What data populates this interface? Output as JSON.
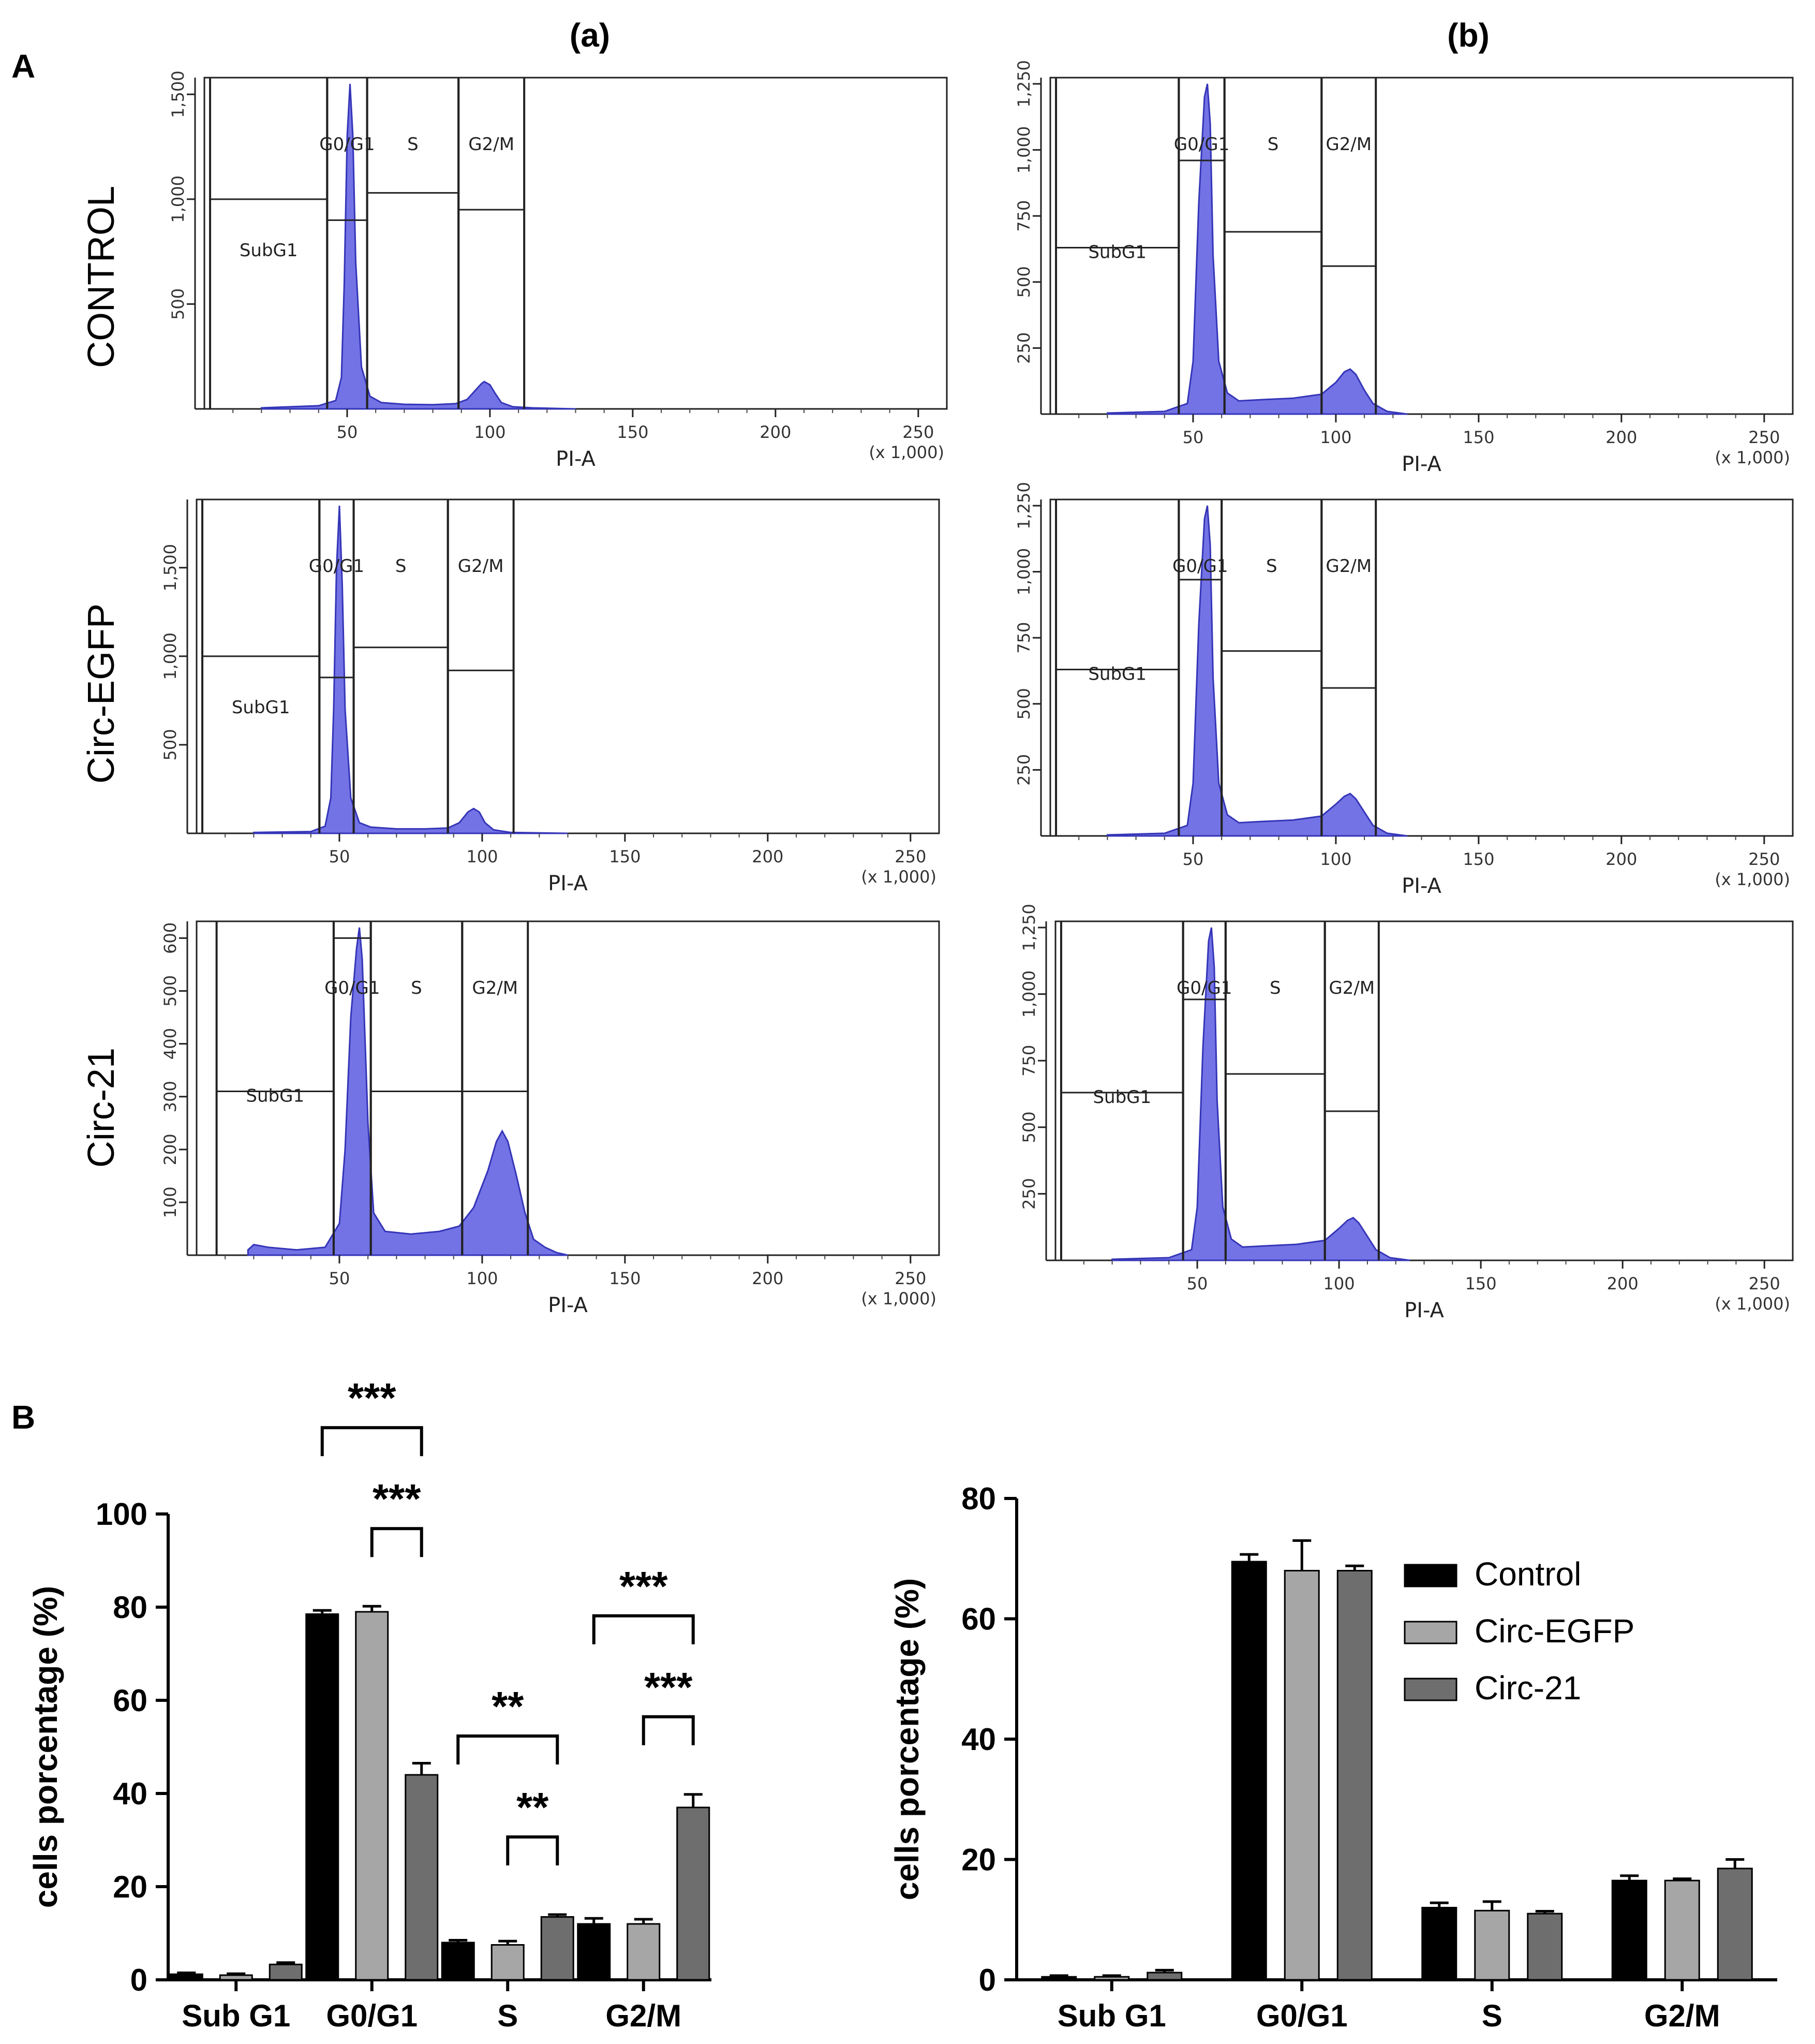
{
  "panel_labels": {
    "A": "A",
    "B": "B",
    "col_a": "(a)",
    "col_b": "(b)"
  },
  "row_labels": [
    "CONTROL",
    "Circ-EGFP",
    "Circ-21"
  ],
  "colors": {
    "histogram": "#5b5be0",
    "control": "#000000",
    "circ_egfp": "#a6a6a6",
    "circ_21": "#6e6e6e"
  },
  "chart_data": [
    {
      "id": "A-a-control",
      "type": "area",
      "column": "(a)",
      "row": "CONTROL",
      "xlabel": "PI-A",
      "x_multiplier": "(x 1,000)",
      "xticks": [
        "50",
        "100",
        "150",
        "200",
        "250"
      ],
      "xlim": [
        0,
        260
      ],
      "yticks": [
        "500",
        "1,000",
        "1,500"
      ],
      "ylim": [
        0,
        1550
      ],
      "gates": [
        {
          "name": "SubG1",
          "x0": 2,
          "x1": 43,
          "level": 1000
        },
        {
          "name": "G0/G1",
          "x0": 43,
          "x1": 57,
          "level": 900
        },
        {
          "name": "S",
          "x0": 57,
          "x1": 89,
          "level": 1030
        },
        {
          "name": "G2/M",
          "x0": 89,
          "x1": 112,
          "level": 950
        }
      ],
      "peaks": {
        "g1_x": 51,
        "g1_y": 1550,
        "g2_x": 98,
        "g2_y": 130,
        "s_level": 20
      },
      "histogram_x": [
        20,
        40,
        46,
        48,
        49,
        50,
        51,
        52,
        53,
        55,
        58,
        62,
        70,
        80,
        88,
        92,
        95,
        97,
        98,
        100,
        102,
        104,
        108,
        115,
        130
      ],
      "histogram_y": [
        5,
        15,
        40,
        150,
        600,
        1300,
        1550,
        1300,
        700,
        200,
        60,
        30,
        22,
        20,
        25,
        45,
        90,
        120,
        130,
        115,
        70,
        30,
        10,
        5,
        0
      ]
    },
    {
      "id": "A-b-control",
      "type": "area",
      "column": "(b)",
      "row": "CONTROL",
      "xlabel": "PI-A",
      "x_multiplier": "(x 1,000)",
      "xticks": [
        "50",
        "100",
        "150",
        "200",
        "250"
      ],
      "xlim": [
        0,
        260
      ],
      "yticks": [
        "250",
        "500",
        "750",
        "1,000",
        "1,250"
      ],
      "ylim": [
        0,
        1250
      ],
      "gates": [
        {
          "name": "SubG1",
          "x0": 2,
          "x1": 45,
          "level": 630
        },
        {
          "name": "G0/G1",
          "x0": 45,
          "x1": 61,
          "level": 960
        },
        {
          "name": "S",
          "x0": 61,
          "x1": 95,
          "level": 690
        },
        {
          "name": "G2/M",
          "x0": 95,
          "x1": 114,
          "level": 560
        }
      ],
      "peaks": {
        "g1_x": 55,
        "g1_y": 1250,
        "g2_x": 105,
        "g2_y": 170,
        "s_level": 50
      },
      "histogram_x": [
        20,
        40,
        48,
        50,
        52,
        54,
        55,
        56,
        57,
        59,
        62,
        66,
        75,
        85,
        95,
        100,
        103,
        105,
        107,
        110,
        113,
        118,
        125
      ],
      "histogram_y": [
        4,
        10,
        40,
        200,
        800,
        1200,
        1250,
        1100,
        600,
        200,
        80,
        50,
        55,
        60,
        75,
        120,
        160,
        170,
        150,
        90,
        40,
        10,
        0
      ]
    },
    {
      "id": "A-a-circ-egfp",
      "type": "area",
      "column": "(a)",
      "row": "Circ-EGFP",
      "xlabel": "PI-A",
      "x_multiplier": "(x 1,000)",
      "xticks": [
        "50",
        "100",
        "150",
        "200",
        "250"
      ],
      "xlim": [
        0,
        260
      ],
      "yticks": [
        "500",
        "1,000",
        "1,500"
      ],
      "ylim": [
        0,
        1850
      ],
      "gates": [
        {
          "name": "SubG1",
          "x0": 2,
          "x1": 43,
          "level": 1000
        },
        {
          "name": "G0/G1",
          "x0": 43,
          "x1": 55,
          "level": 880
        },
        {
          "name": "S",
          "x0": 55,
          "x1": 88,
          "level": 1050
        },
        {
          "name": "G2/M",
          "x0": 88,
          "x1": 111,
          "level": 920
        }
      ],
      "peaks": {
        "g1_x": 50,
        "g1_y": 1850,
        "g2_x": 97,
        "g2_y": 140,
        "s_level": 25
      },
      "histogram_x": [
        20,
        40,
        45,
        47,
        48,
        49,
        50,
        51,
        52,
        54,
        57,
        61,
        70,
        80,
        88,
        92,
        95,
        97,
        99,
        101,
        104,
        110,
        130
      ],
      "histogram_y": [
        5,
        10,
        40,
        200,
        700,
        1500,
        1850,
        1400,
        700,
        200,
        60,
        35,
        25,
        25,
        30,
        60,
        120,
        140,
        120,
        60,
        20,
        5,
        0
      ]
    },
    {
      "id": "A-b-circ-egfp",
      "type": "area",
      "column": "(b)",
      "row": "Circ-EGFP",
      "xlabel": "PI-A",
      "x_multiplier": "(x 1,000)",
      "xticks": [
        "50",
        "100",
        "150",
        "200",
        "250"
      ],
      "xlim": [
        0,
        260
      ],
      "yticks": [
        "250",
        "500",
        "750",
        "1,000",
        "1,250"
      ],
      "ylim": [
        0,
        1250
      ],
      "gates": [
        {
          "name": "SubG1",
          "x0": 2,
          "x1": 45,
          "level": 630
        },
        {
          "name": "G0/G1",
          "x0": 45,
          "x1": 60,
          "level": 970
        },
        {
          "name": "S",
          "x0": 60,
          "x1": 95,
          "level": 700
        },
        {
          "name": "G2/M",
          "x0": 95,
          "x1": 114,
          "level": 560
        }
      ],
      "peaks": {
        "g1_x": 55,
        "g1_y": 1250,
        "g2_x": 105,
        "g2_y": 160,
        "s_level": 50
      },
      "histogram_x": [
        20,
        40,
        48,
        50,
        52,
        54,
        55,
        56,
        57,
        59,
        62,
        66,
        75,
        85,
        95,
        100,
        103,
        105,
        107,
        110,
        113,
        118,
        125
      ],
      "histogram_y": [
        4,
        10,
        40,
        200,
        800,
        1200,
        1250,
        1100,
        600,
        200,
        80,
        50,
        55,
        60,
        75,
        120,
        150,
        160,
        140,
        90,
        40,
        10,
        0
      ]
    },
    {
      "id": "A-a-circ-21",
      "type": "area",
      "column": "(a)",
      "row": "Circ-21",
      "xlabel": "PI-A",
      "x_multiplier": "(x 1,000)",
      "xticks": [
        "50",
        "100",
        "150",
        "200",
        "250"
      ],
      "xlim": [
        0,
        260
      ],
      "yticks": [
        "100",
        "200",
        "300",
        "400",
        "500",
        "600"
      ],
      "ylim": [
        0,
        620
      ],
      "gates": [
        {
          "name": "SubG1",
          "x0": 7,
          "x1": 48,
          "level": 310
        },
        {
          "name": "G0/G1",
          "x0": 48,
          "x1": 61,
          "level": 600
        },
        {
          "name": "S",
          "x0": 61,
          "x1": 93,
          "level": 310
        },
        {
          "name": "G2/M",
          "x0": 93,
          "x1": 116,
          "level": 310
        }
      ],
      "peaks": {
        "g1_x": 57,
        "g1_y": 620,
        "g2_x": 107,
        "g2_y": 235,
        "s_level": 40
      },
      "histogram_x": [
        18,
        20,
        25,
        35,
        45,
        50,
        52,
        54,
        56,
        57,
        58,
        60,
        62,
        66,
        75,
        85,
        92,
        97,
        102,
        105,
        107,
        109,
        112,
        115,
        118,
        122,
        126,
        130
      ],
      "histogram_y": [
        10,
        20,
        15,
        10,
        15,
        60,
        200,
        450,
        580,
        620,
        560,
        250,
        80,
        45,
        40,
        45,
        55,
        90,
        160,
        215,
        235,
        215,
        150,
        80,
        30,
        15,
        5,
        0
      ]
    },
    {
      "id": "A-b-circ-21",
      "type": "area",
      "column": "(b)",
      "row": "Circ-21",
      "xlabel": "PI-A",
      "x_multiplier": "(x 1,000)",
      "xticks": [
        "50",
        "100",
        "150",
        "200",
        "250"
      ],
      "xlim": [
        0,
        260
      ],
      "yticks": [
        "250",
        "500",
        "750",
        "1,000",
        "1,250"
      ],
      "ylim": [
        0,
        1250
      ],
      "gates": [
        {
          "name": "SubG1",
          "x0": 2,
          "x1": 45,
          "level": 630
        },
        {
          "name": "G0/G1",
          "x0": 45,
          "x1": 60,
          "level": 980
        },
        {
          "name": "S",
          "x0": 60,
          "x1": 95,
          "level": 700
        },
        {
          "name": "G2/M",
          "x0": 95,
          "x1": 114,
          "level": 560
        }
      ],
      "peaks": {
        "g1_x": 55,
        "g1_y": 1250,
        "g2_x": 105,
        "g2_y": 160,
        "s_level": 50
      },
      "histogram_x": [
        20,
        40,
        48,
        50,
        52,
        54,
        55,
        56,
        57,
        59,
        62,
        66,
        75,
        85,
        95,
        100,
        103,
        105,
        107,
        110,
        113,
        118,
        125
      ],
      "histogram_y": [
        4,
        10,
        40,
        200,
        800,
        1200,
        1250,
        1100,
        600,
        200,
        80,
        50,
        55,
        60,
        75,
        120,
        150,
        160,
        140,
        90,
        40,
        10,
        0
      ]
    },
    {
      "id": "B-left",
      "type": "bar",
      "categories": [
        "Sub G1",
        "G0/G1",
        "S",
        "G2/M"
      ],
      "ylabel": "cells porcentage (%)",
      "ylim": [
        0,
        100
      ],
      "yticks": [
        "0",
        "20",
        "40",
        "60",
        "80",
        "100"
      ],
      "series": [
        {
          "name": "Control",
          "values": [
            1.2,
            78.5,
            8.0,
            12.0
          ],
          "errors": [
            0.3,
            0.8,
            0.5,
            1.2
          ]
        },
        {
          "name": "Circ-EGFP",
          "values": [
            1.0,
            79.0,
            7.5,
            12.0
          ],
          "errors": [
            0.3,
            1.2,
            0.8,
            1.0
          ]
        },
        {
          "name": "Circ-21",
          "values": [
            3.3,
            44.0,
            13.5,
            37.0
          ],
          "errors": [
            0.4,
            2.5,
            0.5,
            2.8
          ]
        }
      ],
      "significance": [
        {
          "category": "G0/G1",
          "from": "Control",
          "to": "Circ-21",
          "label": "***",
          "level": 1
        },
        {
          "category": "G0/G1",
          "from": "Circ-EGFP",
          "to": "Circ-21",
          "label": "***",
          "level": 0
        },
        {
          "category": "S",
          "from": "Control",
          "to": "Circ-21",
          "label": "**",
          "level": 1
        },
        {
          "category": "S",
          "from": "Circ-EGFP",
          "to": "Circ-21",
          "label": "**",
          "level": 0
        },
        {
          "category": "G2/M",
          "from": "Control",
          "to": "Circ-21",
          "label": "***",
          "level": 1
        },
        {
          "category": "G2/M",
          "from": "Circ-EGFP",
          "to": "Circ-21",
          "label": "***",
          "level": 0
        }
      ]
    },
    {
      "id": "B-right",
      "type": "bar",
      "categories": [
        "Sub G1",
        "G0/G1",
        "S",
        "G2/M"
      ],
      "ylabel": "cells porcentage (%)",
      "ylim": [
        0,
        80
      ],
      "yticks": [
        "0",
        "20",
        "40",
        "60",
        "80"
      ],
      "legend": [
        "Control",
        "Circ-EGFP",
        "Circ-21"
      ],
      "series": [
        {
          "name": "Control",
          "values": [
            0.5,
            69.5,
            12.0,
            16.5
          ],
          "errors": [
            0.2,
            1.2,
            0.8,
            0.8
          ]
        },
        {
          "name": "Circ-EGFP",
          "values": [
            0.5,
            68.0,
            11.5,
            16.5
          ],
          "errors": [
            0.2,
            5.0,
            1.5,
            0.3
          ]
        },
        {
          "name": "Circ-21",
          "values": [
            1.2,
            68.0,
            11.0,
            18.5
          ],
          "errors": [
            0.4,
            0.8,
            0.4,
            1.5
          ]
        }
      ]
    }
  ]
}
